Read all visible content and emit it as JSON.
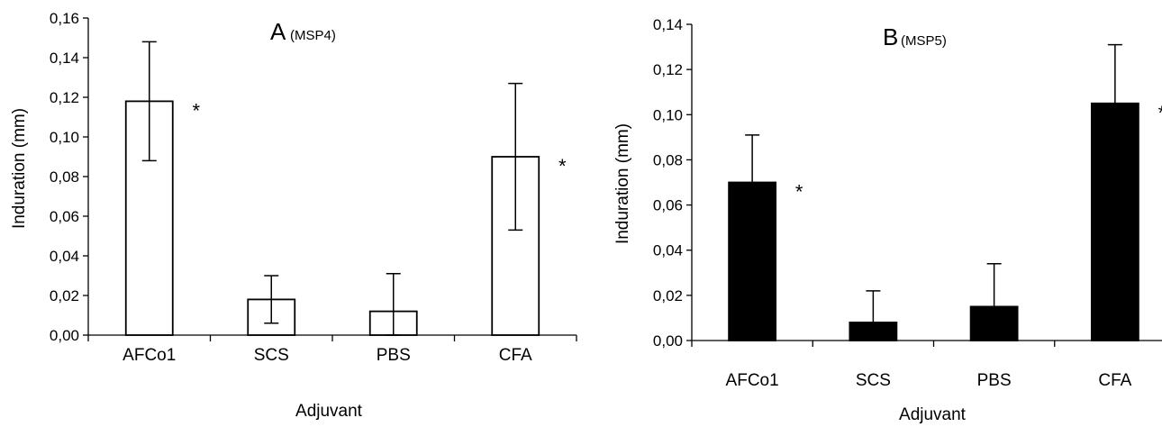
{
  "chart_data": [
    {
      "type": "bar",
      "title_letter": "A",
      "title_sub": "(MSP4)",
      "xlabel": "Adjuvant",
      "ylabel": "Induration (mm)",
      "categories": [
        "AFCo1",
        "SCS",
        "PBS",
        "CFA"
      ],
      "values": [
        0.118,
        0.018,
        0.012,
        0.09
      ],
      "error_upper": [
        0.148,
        0.03,
        0.031,
        0.127
      ],
      "error_lower": [
        0.088,
        0.006,
        0.0,
        0.053
      ],
      "significance": [
        "*",
        "",
        "",
        "*"
      ],
      "ylim": [
        0,
        0.16
      ],
      "yticks": [
        "0,00",
        "0,02",
        "0,04",
        "0,06",
        "0,08",
        "0,10",
        "0,12",
        "0,14",
        "0,16"
      ],
      "bar_fill": "#ffffff",
      "bar_stroke": "#000000",
      "grid": false
    },
    {
      "type": "bar",
      "title_letter": "B",
      "title_sub": "(MSP5)",
      "xlabel": "Adjuvant",
      "ylabel": "Induration (mm)",
      "categories": [
        "AFCo1",
        "SCS",
        "PBS",
        "CFA"
      ],
      "values": [
        0.07,
        0.008,
        0.015,
        0.105
      ],
      "error_upper": [
        0.091,
        0.022,
        0.034,
        0.131
      ],
      "error_lower": [
        0.07,
        0.008,
        0.015,
        0.105
      ],
      "significance": [
        "*",
        "",
        "",
        "*"
      ],
      "ylim": [
        0,
        0.14
      ],
      "yticks": [
        "0,00",
        "0,02",
        "0,04",
        "0,06",
        "0,08",
        "0,10",
        "0,12",
        "0,14"
      ],
      "bar_fill": "#000000",
      "bar_stroke": "#000000",
      "grid": false
    }
  ]
}
